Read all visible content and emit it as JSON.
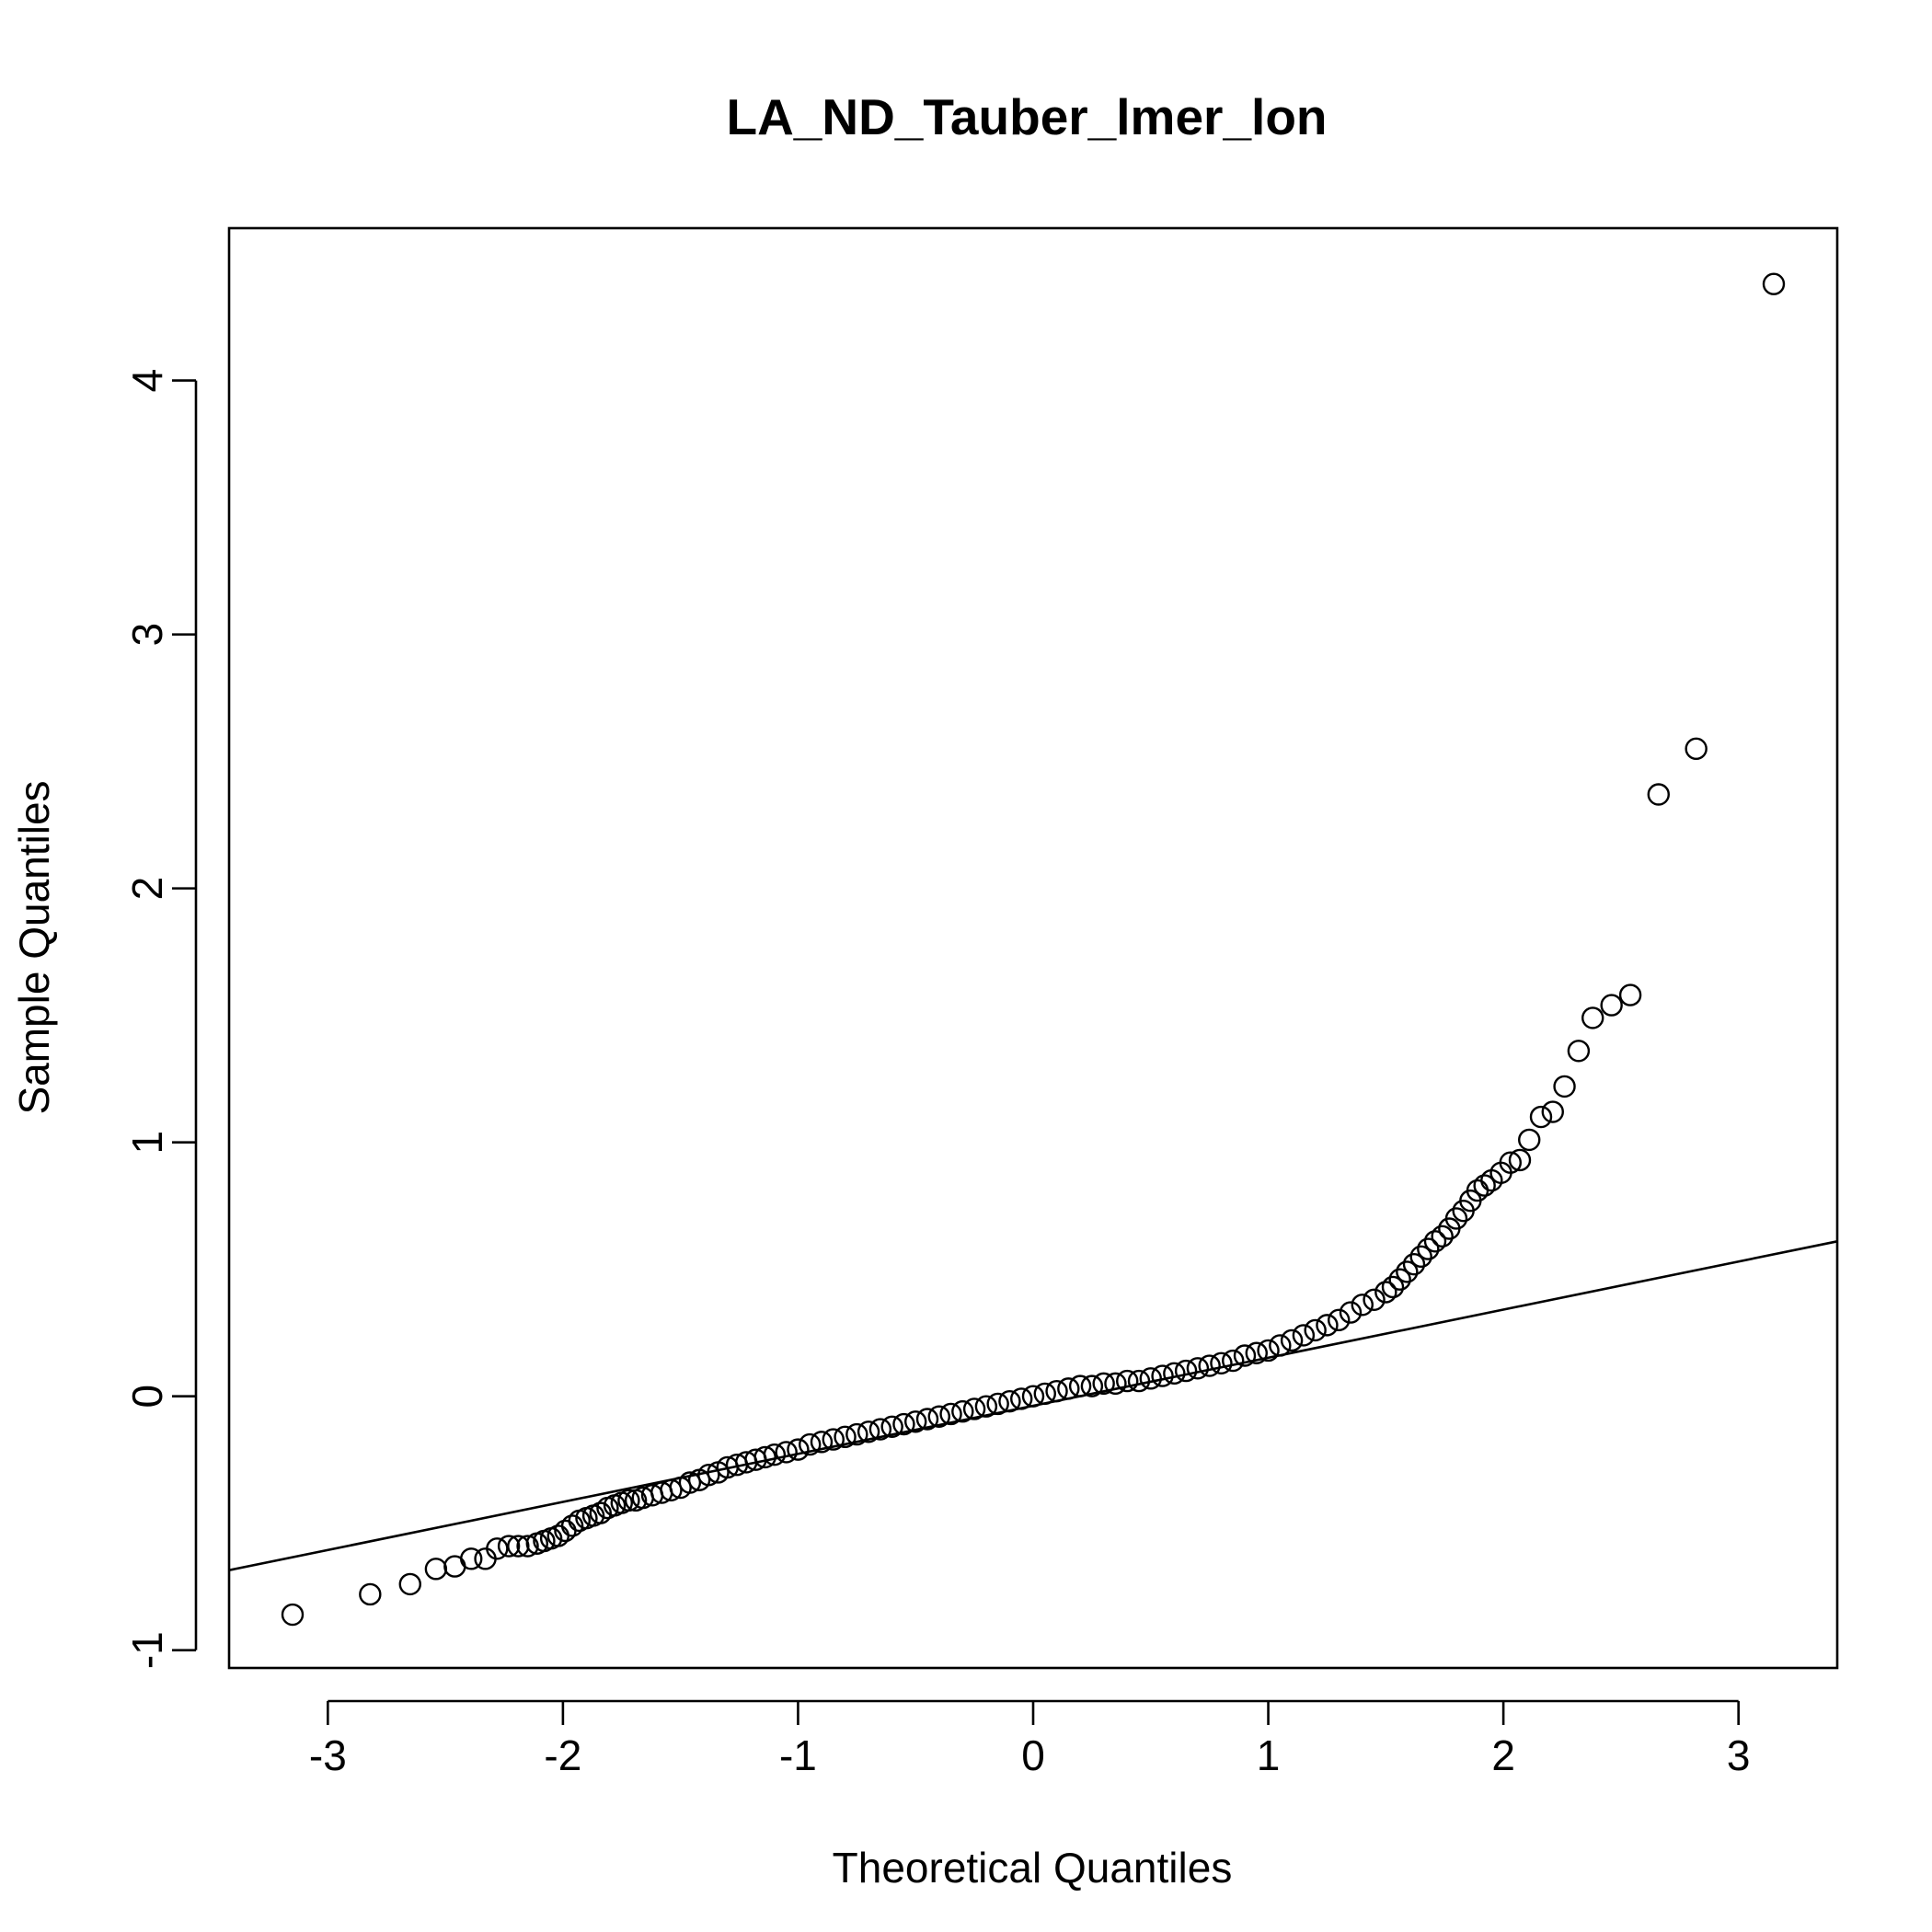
{
  "chart_data": {
    "type": "scatter",
    "title": "LA_ND_Tauber_lmer_lon",
    "xlabel": "Theoretical Quantiles",
    "ylabel": "Sample Quantiles",
    "xlim": [
      -3.42,
      3.42
    ],
    "ylim": [
      -1.07,
      4.6
    ],
    "xticks": [
      -3,
      -2,
      -1,
      0,
      1,
      2,
      3
    ],
    "yticks": [
      -1,
      0,
      1,
      2,
      3,
      4
    ],
    "grid": false,
    "legend": "none",
    "reference_line": {
      "x": [
        -3.42,
        3.42
      ],
      "y": [
        -0.685,
        0.61
      ]
    },
    "points": {
      "x": [
        -3.15,
        -2.82,
        -2.65,
        -2.54,
        -2.46,
        -2.39,
        -2.33,
        -2.28,
        -2.23,
        -2.19,
        -2.15,
        -2.11,
        -2.08,
        -2.05,
        -2.02,
        -1.99,
        -1.96,
        -1.93,
        -1.9,
        -1.87,
        -1.84,
        -1.81,
        -1.78,
        -1.75,
        -1.72,
        -1.69,
        -1.66,
        -1.62,
        -1.58,
        -1.54,
        -1.5,
        -1.46,
        -1.42,
        -1.38,
        -1.34,
        -1.3,
        -1.26,
        -1.22,
        -1.18,
        -1.14,
        -1.1,
        -1.05,
        -1.0,
        -0.95,
        -0.9,
        -0.85,
        -0.8,
        -0.75,
        -0.7,
        -0.65,
        -0.6,
        -0.55,
        -0.5,
        -0.45,
        -0.4,
        -0.35,
        -0.3,
        -0.25,
        -0.2,
        -0.15,
        -0.1,
        -0.05,
        0.0,
        0.05,
        0.1,
        0.15,
        0.2,
        0.25,
        0.3,
        0.35,
        0.4,
        0.45,
        0.5,
        0.55,
        0.6,
        0.65,
        0.7,
        0.75,
        0.8,
        0.85,
        0.9,
        0.95,
        1.0,
        1.05,
        1.1,
        1.15,
        1.2,
        1.25,
        1.3,
        1.35,
        1.4,
        1.45,
        1.5,
        1.53,
        1.56,
        1.59,
        1.62,
        1.65,
        1.68,
        1.71,
        1.74,
        1.77,
        1.8,
        1.83,
        1.86,
        1.89,
        1.92,
        1.95,
        1.99,
        2.03,
        2.07,
        2.11,
        2.16,
        2.21,
        2.26,
        2.32,
        2.38,
        2.46,
        2.54,
        2.66,
        2.82,
        3.15
      ],
      "y": [
        -0.86,
        -0.78,
        -0.74,
        -0.68,
        -0.67,
        -0.64,
        -0.64,
        -0.6,
        -0.59,
        -0.59,
        -0.59,
        -0.58,
        -0.57,
        -0.56,
        -0.55,
        -0.53,
        -0.51,
        -0.49,
        -0.48,
        -0.47,
        -0.46,
        -0.44,
        -0.43,
        -0.42,
        -0.41,
        -0.41,
        -0.4,
        -0.39,
        -0.38,
        -0.37,
        -0.36,
        -0.34,
        -0.33,
        -0.31,
        -0.3,
        -0.28,
        -0.27,
        -0.26,
        -0.25,
        -0.24,
        -0.23,
        -0.22,
        -0.21,
        -0.19,
        -0.18,
        -0.17,
        -0.16,
        -0.15,
        -0.14,
        -0.13,
        -0.12,
        -0.11,
        -0.1,
        -0.09,
        -0.08,
        -0.07,
        -0.06,
        -0.05,
        -0.04,
        -0.03,
        -0.02,
        -0.01,
        0.0,
        0.01,
        0.02,
        0.03,
        0.04,
        0.04,
        0.05,
        0.05,
        0.06,
        0.06,
        0.07,
        0.08,
        0.09,
        0.1,
        0.11,
        0.12,
        0.13,
        0.14,
        0.16,
        0.17,
        0.18,
        0.2,
        0.22,
        0.24,
        0.26,
        0.28,
        0.3,
        0.33,
        0.36,
        0.38,
        0.41,
        0.43,
        0.46,
        0.49,
        0.52,
        0.55,
        0.58,
        0.61,
        0.63,
        0.66,
        0.7,
        0.73,
        0.77,
        0.81,
        0.83,
        0.85,
        0.88,
        0.92,
        0.93,
        1.01,
        1.1,
        1.12,
        1.22,
        1.36,
        1.49,
        1.54,
        1.58,
        2.37,
        2.55,
        4.38
      ]
    }
  }
}
